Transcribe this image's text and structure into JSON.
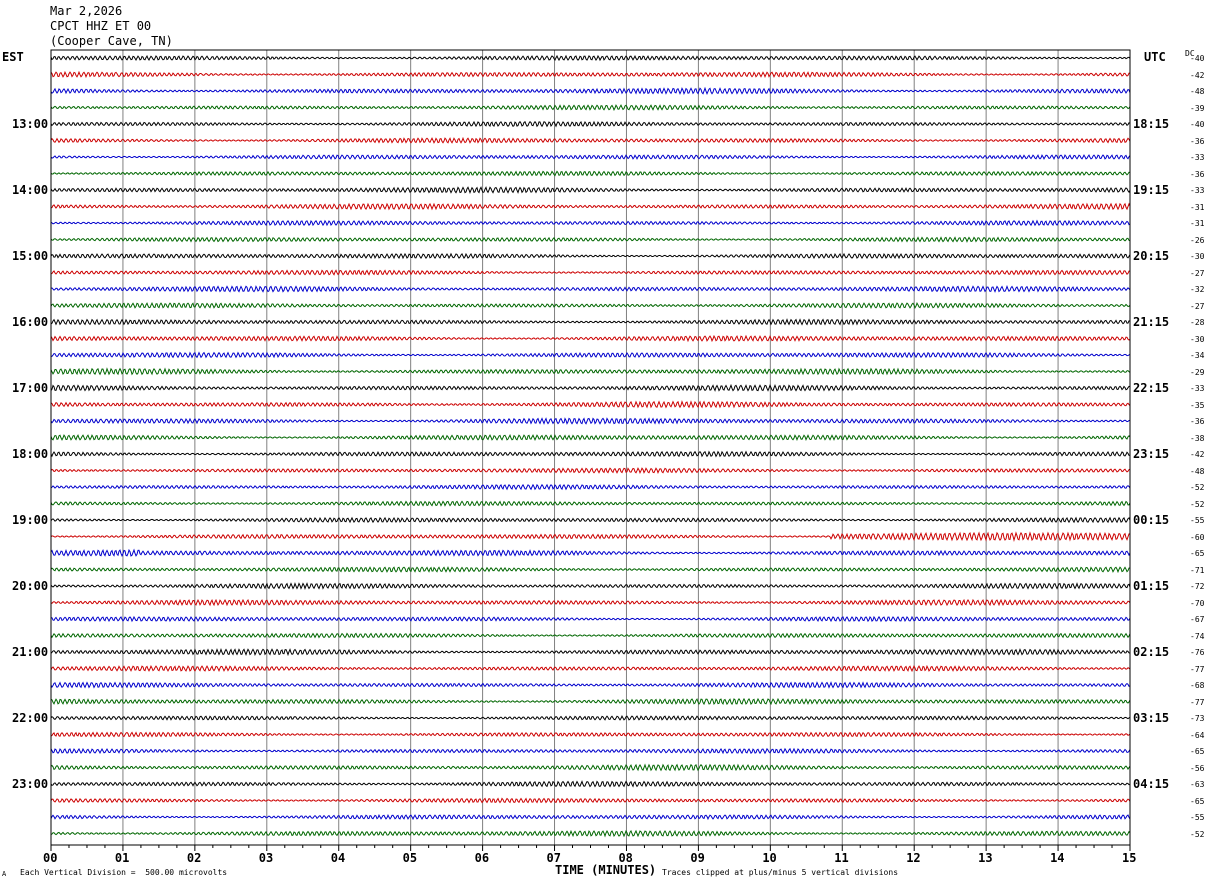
{
  "header": {
    "date": "Mar 2,2026",
    "station": "CPCT HHZ ET 00",
    "location": "(Cooper Cave, TN)"
  },
  "left_zone_label": "EST",
  "right_zone_label": "UTC",
  "dc_label": "DC",
  "footer": {
    "scale_note": "Each Vertical Division =  500.00 microvolts",
    "clip_note": "Traces clipped at plus/minus 5 vertical divisions",
    "corner_mark": "A"
  },
  "chart_data": {
    "type": "line",
    "title": "",
    "xlabel": "TIME (MINUTES)",
    "xlim": [
      0,
      15
    ],
    "x_ticks": [
      "00",
      "01",
      "02",
      "03",
      "04",
      "05",
      "06",
      "07",
      "08",
      "09",
      "10",
      "11",
      "12",
      "13",
      "14",
      "15"
    ],
    "left_hour_labels": [
      "13:00",
      "14:00",
      "15:00",
      "16:00",
      "17:00",
      "18:00",
      "19:00",
      "20:00",
      "21:00",
      "22:00",
      "23:00"
    ],
    "right_hour_labels": [
      "18:15",
      "19:15",
      "20:15",
      "21:15",
      "22:15",
      "23:15",
      "00:15",
      "01:15",
      "02:15",
      "03:15",
      "04:15"
    ],
    "trace_colors": [
      "#000000",
      "#cc0000",
      "#0000cc",
      "#006600"
    ],
    "dc_offsets": [
      "-40",
      "-42",
      "-48",
      "-39",
      "-40",
      "-36",
      "-33",
      "-36",
      "-33",
      "-31",
      "-31",
      "-26",
      "-30",
      "-27",
      "-32",
      "-27",
      "-28",
      "-30",
      "-34",
      "-29",
      "-33",
      "-35",
      "-36",
      "-38",
      "-42",
      "-48",
      "-52",
      "-52",
      "-55",
      "-60",
      "-65",
      "-71",
      "-72",
      "-70",
      "-67",
      "-74",
      "-76",
      "-77",
      "-68",
      "-77",
      "-73",
      "-64",
      "-65",
      "-56",
      "-63",
      "-65",
      "-55",
      "-52"
    ],
    "grid": true
  }
}
